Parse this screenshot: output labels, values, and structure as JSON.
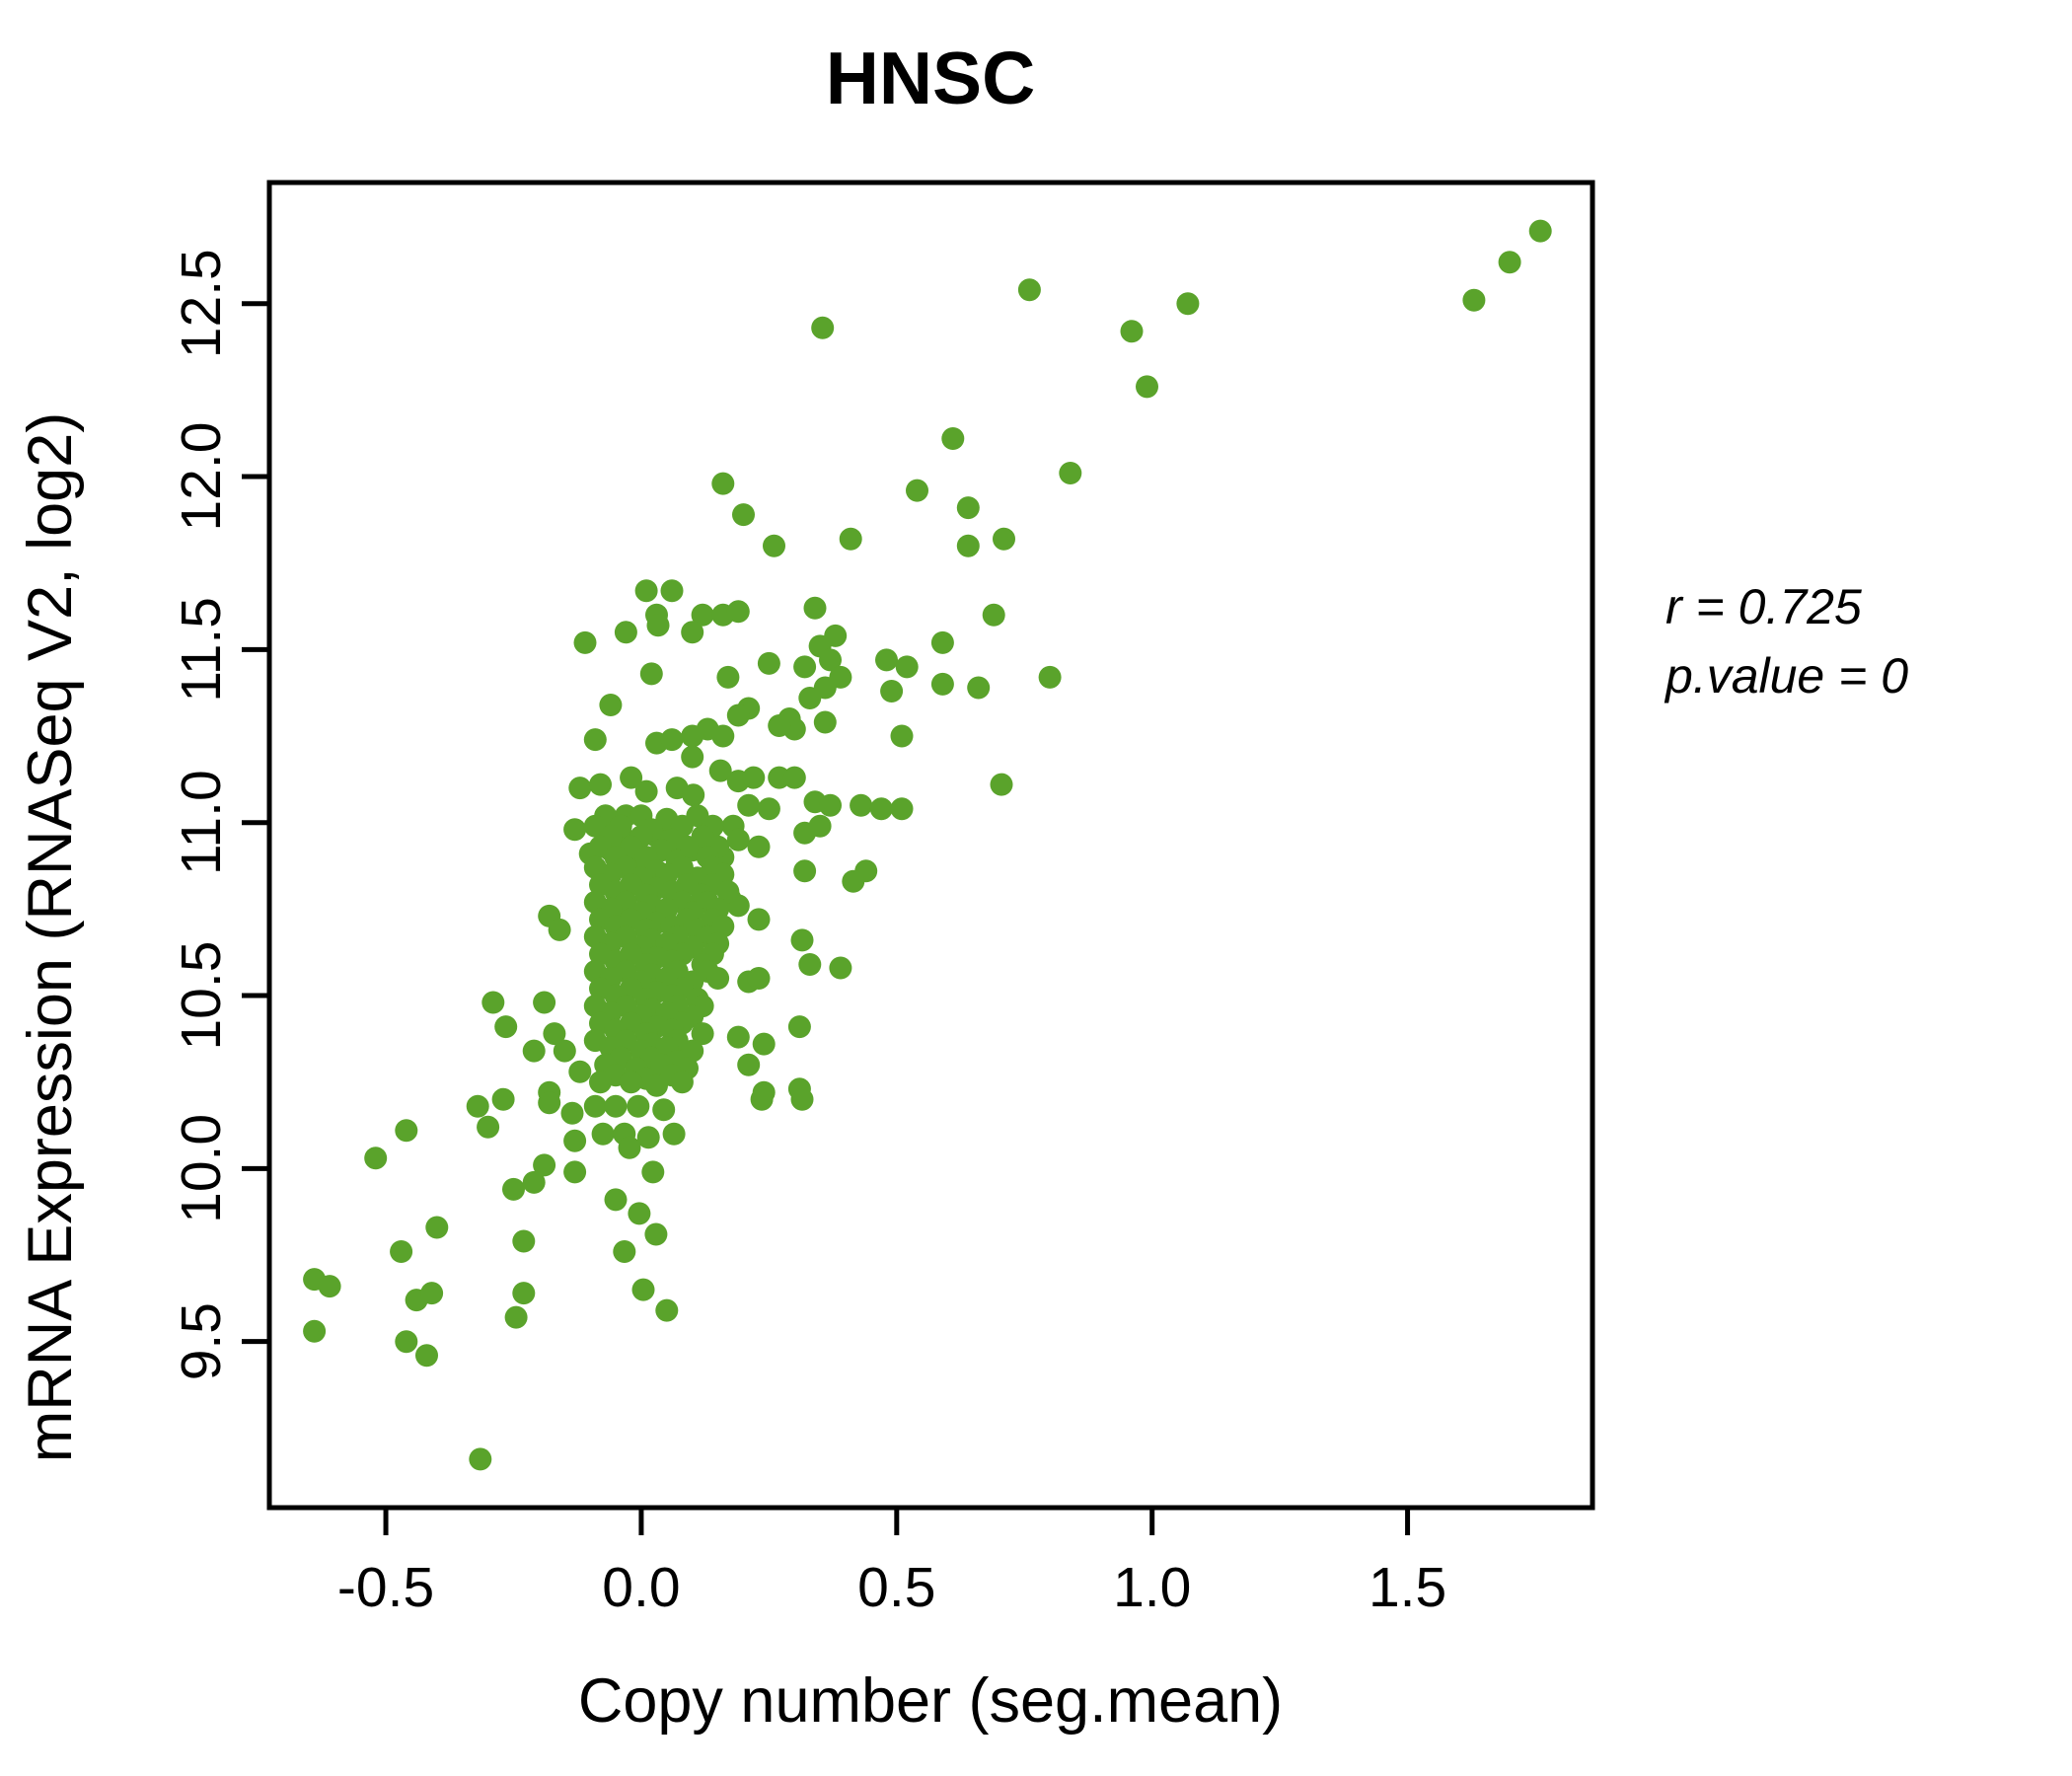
{
  "title": {
    "text": "HNSC",
    "color": "#5aa32b"
  },
  "annotation": {
    "line1": "r = 0.725",
    "line2": "p.value = 0"
  },
  "chart_data": {
    "type": "scatter",
    "title": "HNSC",
    "xlabel": "Copy number (seg.mean)",
    "ylabel": "mRNA Expression (RNASeq V2, log2)",
    "xlim": [
      -0.728,
      1.862
    ],
    "ylim": [
      9.02,
      12.85
    ],
    "x_tick_values": [
      -0.5,
      0.0,
      0.5,
      1.0,
      1.5
    ],
    "x_tick_labels": [
      "-0.5",
      "0.0",
      "0.5",
      "1.0",
      "1.5"
    ],
    "y_tick_values": [
      9.5,
      10.0,
      10.5,
      11.0,
      11.5,
      12.0,
      12.5
    ],
    "y_tick_labels": [
      "9.5",
      "10.0",
      "10.5",
      "11.0",
      "11.5",
      "12.0",
      "12.5"
    ],
    "grid": false,
    "legend": "none",
    "point_color": "#5aa32b",
    "point_radius_px": 11.5,
    "correlation_r": 0.725,
    "p_value": 0,
    "points": [
      [
        1.76,
        12.71
      ],
      [
        1.7,
        12.62
      ],
      [
        1.63,
        12.51
      ],
      [
        0.76,
        12.54
      ],
      [
        1.07,
        12.5
      ],
      [
        0.355,
        12.43
      ],
      [
        0.96,
        12.42
      ],
      [
        0.99,
        12.26
      ],
      [
        0.61,
        12.11
      ],
      [
        0.84,
        12.01
      ],
      [
        0.54,
        11.96
      ],
      [
        0.64,
        11.91
      ],
      [
        0.16,
        11.98
      ],
      [
        0.2,
        11.89
      ],
      [
        0.26,
        11.8
      ],
      [
        0.41,
        11.82
      ],
      [
        0.64,
        11.8
      ],
      [
        0.71,
        11.82
      ],
      [
        0.01,
        11.67
      ],
      [
        0.06,
        11.67
      ],
      [
        0.03,
        11.6
      ],
      [
        0.12,
        11.6
      ],
      [
        0.16,
        11.6
      ],
      [
        0.19,
        11.61
      ],
      [
        0.34,
        11.62
      ],
      [
        0.69,
        11.6
      ],
      [
        -0.11,
        11.52
      ],
      [
        -0.03,
        11.55
      ],
      [
        0.1,
        11.55
      ],
      [
        0.38,
        11.54
      ],
      [
        0.35,
        11.51
      ],
      [
        0.59,
        11.52
      ],
      [
        0.033,
        11.57
      ],
      [
        0.25,
        11.46
      ],
      [
        0.32,
        11.45
      ],
      [
        0.37,
        11.47
      ],
      [
        0.48,
        11.47
      ],
      [
        0.52,
        11.45
      ],
      [
        0.39,
        11.42
      ],
      [
        0.17,
        11.42
      ],
      [
        0.02,
        11.43
      ],
      [
        0.8,
        11.42
      ],
      [
        0.59,
        11.4
      ],
      [
        0.66,
        11.39
      ],
      [
        0.36,
        11.39
      ],
      [
        0.33,
        11.36
      ],
      [
        0.49,
        11.38
      ],
      [
        -0.06,
        11.34
      ],
      [
        0.21,
        11.33
      ],
      [
        0.19,
        11.31
      ],
      [
        0.29,
        11.3
      ],
      [
        0.3,
        11.27
      ],
      [
        0.27,
        11.28
      ],
      [
        0.13,
        11.27
      ],
      [
        0.36,
        11.29
      ],
      [
        0.51,
        11.25
      ],
      [
        0.1,
        11.25
      ],
      [
        0.16,
        11.25
      ],
      [
        -0.09,
        11.24
      ],
      [
        0.03,
        11.23
      ],
      [
        0.06,
        11.24
      ],
      [
        0.1,
        11.19
      ],
      [
        0.155,
        11.15
      ],
      [
        -0.12,
        11.1
      ],
      [
        -0.08,
        11.11
      ],
      [
        -0.02,
        11.13
      ],
      [
        0.01,
        11.09
      ],
      [
        0.07,
        11.1
      ],
      [
        0.19,
        11.12
      ],
      [
        0.22,
        11.13
      ],
      [
        0.27,
        11.13
      ],
      [
        0.3,
        11.13
      ],
      [
        0.705,
        11.11
      ],
      [
        0.102,
        11.08
      ],
      [
        0.43,
        11.05
      ],
      [
        0.47,
        11.04
      ],
      [
        0.51,
        11.04
      ],
      [
        0.34,
        11.06
      ],
      [
        0.37,
        11.05
      ],
      [
        0.21,
        11.05
      ],
      [
        0.25,
        11.04
      ],
      [
        -0.13,
        10.98
      ],
      [
        -0.03,
        11.02
      ],
      [
        0.135,
        10.98
      ],
      [
        0.32,
        10.97
      ],
      [
        0.35,
        10.99
      ],
      [
        0.18,
        10.99
      ],
      [
        -0.03,
        10.95
      ],
      [
        0.03,
        10.96
      ],
      [
        -0.1,
        10.91
      ],
      [
        -0.06,
        10.92
      ],
      [
        -0.01,
        10.9
      ],
      [
        0.1,
        10.92
      ],
      [
        0.16,
        10.9
      ],
      [
        0.23,
        10.93
      ],
      [
        0.19,
        10.95
      ],
      [
        0.44,
        10.86
      ],
      [
        0.415,
        10.83
      ],
      [
        0.32,
        10.86
      ],
      [
        0.174,
        10.78
      ],
      [
        -0.18,
        10.73
      ],
      [
        -0.16,
        10.69
      ],
      [
        -0.07,
        10.73
      ],
      [
        -0.03,
        10.72
      ],
      [
        0.19,
        10.76
      ],
      [
        0.23,
        10.72
      ],
      [
        0.315,
        10.66
      ],
      [
        0.33,
        10.59
      ],
      [
        0.39,
        10.58
      ],
      [
        0.21,
        10.54
      ],
      [
        0.23,
        10.55
      ],
      [
        -0.29,
        10.48
      ],
      [
        -0.19,
        10.48
      ],
      [
        -0.265,
        10.41
      ],
      [
        -0.17,
        10.39
      ],
      [
        0.31,
        10.41
      ],
      [
        -0.21,
        10.34
      ],
      [
        -0.15,
        10.34
      ],
      [
        -0.12,
        10.28
      ],
      [
        -0.06,
        10.31
      ],
      [
        0.24,
        10.36
      ],
      [
        0.19,
        10.38
      ],
      [
        0.21,
        10.3
      ],
      [
        -0.18,
        10.22
      ],
      [
        0.31,
        10.23
      ],
      [
        0.24,
        10.22
      ],
      [
        0.236,
        10.2
      ],
      [
        0.315,
        10.2
      ],
      [
        -0.32,
        10.18
      ],
      [
        -0.27,
        10.2
      ],
      [
        -0.18,
        10.19
      ],
      [
        -0.135,
        10.16
      ],
      [
        -0.09,
        10.18
      ],
      [
        -0.05,
        10.18
      ],
      [
        -0.006,
        10.18
      ],
      [
        0.044,
        10.17
      ],
      [
        -0.13,
        10.08
      ],
      [
        -0.075,
        10.1
      ],
      [
        -0.033,
        10.1
      ],
      [
        0.014,
        10.09
      ],
      [
        0.064,
        10.1
      ],
      [
        -0.46,
        10.11
      ],
      [
        -0.3,
        10.12
      ],
      [
        -0.52,
        10.03
      ],
      [
        -0.023,
        10.06
      ],
      [
        0.023,
        9.99
      ],
      [
        -0.19,
        10.01
      ],
      [
        -0.13,
        9.99
      ],
      [
        -0.25,
        9.94
      ],
      [
        -0.21,
        9.96
      ],
      [
        -0.05,
        9.91
      ],
      [
        -0.004,
        9.87
      ],
      [
        0.029,
        9.81
      ],
      [
        -0.4,
        9.83
      ],
      [
        -0.47,
        9.76
      ],
      [
        -0.23,
        9.79
      ],
      [
        -0.033,
        9.76
      ],
      [
        0.004,
        9.65
      ],
      [
        0.05,
        9.59
      ],
      [
        -0.64,
        9.68
      ],
      [
        -0.61,
        9.66
      ],
      [
        -0.64,
        9.53
      ],
      [
        -0.44,
        9.62
      ],
      [
        -0.41,
        9.64
      ],
      [
        -0.23,
        9.64
      ],
      [
        -0.245,
        9.57
      ],
      [
        -0.46,
        9.5
      ],
      [
        -0.42,
        9.46
      ],
      [
        -0.315,
        9.16
      ],
      [
        -0.07,
        11.02
      ],
      [
        0.0,
        11.02
      ],
      [
        0.05,
        11.01
      ],
      [
        0.11,
        11.02
      ],
      [
        -0.09,
        10.99
      ],
      [
        -0.04,
        10.99
      ],
      [
        0.02,
        10.98
      ],
      [
        0.08,
        10.99
      ],
      [
        0.14,
        10.99
      ],
      [
        -0.06,
        10.96
      ],
      [
        0.0,
        10.96
      ],
      [
        0.06,
        10.95
      ],
      [
        0.12,
        10.96
      ],
      [
        -0.08,
        10.93
      ],
      [
        -0.02,
        10.93
      ],
      [
        0.04,
        10.92
      ],
      [
        0.09,
        10.93
      ],
      [
        0.15,
        10.93
      ],
      [
        -0.05,
        10.9
      ],
      [
        0.01,
        10.9
      ],
      [
        0.07,
        10.89
      ],
      [
        0.13,
        10.9
      ],
      [
        -0.09,
        10.87
      ],
      [
        -0.03,
        10.87
      ],
      [
        0.03,
        10.86
      ],
      [
        0.08,
        10.87
      ],
      [
        0.14,
        10.87
      ],
      [
        -0.06,
        10.85
      ],
      [
        0.0,
        10.84
      ],
      [
        0.05,
        10.85
      ],
      [
        0.11,
        10.84
      ],
      [
        0.16,
        10.85
      ],
      [
        -0.08,
        10.82
      ],
      [
        -0.02,
        10.82
      ],
      [
        0.03,
        10.81
      ],
      [
        0.09,
        10.82
      ],
      [
        0.14,
        10.82
      ],
      [
        -0.05,
        10.8
      ],
      [
        0.01,
        10.79
      ],
      [
        0.06,
        10.8
      ],
      [
        0.12,
        10.79
      ],
      [
        0.17,
        10.8
      ],
      [
        -0.09,
        10.77
      ],
      [
        -0.03,
        10.77
      ],
      [
        0.02,
        10.76
      ],
      [
        0.08,
        10.77
      ],
      [
        0.13,
        10.77
      ],
      [
        -0.06,
        10.75
      ],
      [
        0.0,
        10.74
      ],
      [
        0.05,
        10.75
      ],
      [
        0.1,
        10.74
      ],
      [
        0.15,
        10.75
      ],
      [
        -0.08,
        10.72
      ],
      [
        -0.02,
        10.72
      ],
      [
        0.03,
        10.71
      ],
      [
        0.09,
        10.72
      ],
      [
        0.14,
        10.72
      ],
      [
        -0.05,
        10.7
      ],
      [
        0.01,
        10.69
      ],
      [
        0.06,
        10.7
      ],
      [
        0.11,
        10.69
      ],
      [
        0.16,
        10.7
      ],
      [
        -0.09,
        10.67
      ],
      [
        -0.03,
        10.67
      ],
      [
        0.02,
        10.66
      ],
      [
        0.07,
        10.67
      ],
      [
        0.13,
        10.67
      ],
      [
        -0.06,
        10.65
      ],
      [
        0.0,
        10.64
      ],
      [
        0.05,
        10.65
      ],
      [
        0.1,
        10.64
      ],
      [
        0.15,
        10.65
      ],
      [
        -0.08,
        10.62
      ],
      [
        -0.02,
        10.62
      ],
      [
        0.03,
        10.61
      ],
      [
        0.08,
        10.62
      ],
      [
        0.14,
        10.62
      ],
      [
        -0.05,
        10.6
      ],
      [
        0.01,
        10.59
      ],
      [
        0.06,
        10.6
      ],
      [
        0.12,
        10.59
      ],
      [
        -0.09,
        10.57
      ],
      [
        -0.03,
        10.57
      ],
      [
        0.02,
        10.56
      ],
      [
        0.07,
        10.57
      ],
      [
        0.13,
        10.57
      ],
      [
        -0.06,
        10.55
      ],
      [
        0.0,
        10.54
      ],
      [
        0.05,
        10.55
      ],
      [
        0.1,
        10.54
      ],
      [
        0.15,
        10.55
      ],
      [
        -0.08,
        10.52
      ],
      [
        -0.02,
        10.52
      ],
      [
        0.03,
        10.51
      ],
      [
        0.08,
        10.52
      ],
      [
        -0.05,
        10.5
      ],
      [
        0.01,
        10.49
      ],
      [
        0.06,
        10.5
      ],
      [
        0.11,
        10.49
      ],
      [
        -0.09,
        10.47
      ],
      [
        -0.03,
        10.47
      ],
      [
        0.02,
        10.46
      ],
      [
        0.07,
        10.47
      ],
      [
        0.12,
        10.47
      ],
      [
        -0.06,
        10.45
      ],
      [
        0.0,
        10.44
      ],
      [
        0.05,
        10.45
      ],
      [
        0.1,
        10.44
      ],
      [
        -0.08,
        10.42
      ],
      [
        -0.02,
        10.42
      ],
      [
        0.03,
        10.41
      ],
      [
        0.08,
        10.42
      ],
      [
        -0.05,
        10.4
      ],
      [
        0.01,
        10.39
      ],
      [
        0.06,
        10.4
      ],
      [
        0.12,
        10.39
      ],
      [
        -0.09,
        10.37
      ],
      [
        -0.03,
        10.37
      ],
      [
        0.02,
        10.36
      ],
      [
        0.07,
        10.37
      ],
      [
        -0.06,
        10.35
      ],
      [
        0.0,
        10.34
      ],
      [
        0.05,
        10.35
      ],
      [
        0.1,
        10.34
      ],
      [
        -0.04,
        10.32
      ],
      [
        0.02,
        10.32
      ],
      [
        0.07,
        10.31
      ],
      [
        -0.07,
        10.3
      ],
      [
        -0.01,
        10.29
      ],
      [
        0.04,
        10.3
      ],
      [
        0.09,
        10.29
      ],
      [
        -0.05,
        10.27
      ],
      [
        0.01,
        10.26
      ],
      [
        0.06,
        10.27
      ],
      [
        -0.08,
        10.25
      ],
      [
        -0.02,
        10.25
      ],
      [
        0.03,
        10.24
      ],
      [
        0.08,
        10.25
      ]
    ]
  }
}
